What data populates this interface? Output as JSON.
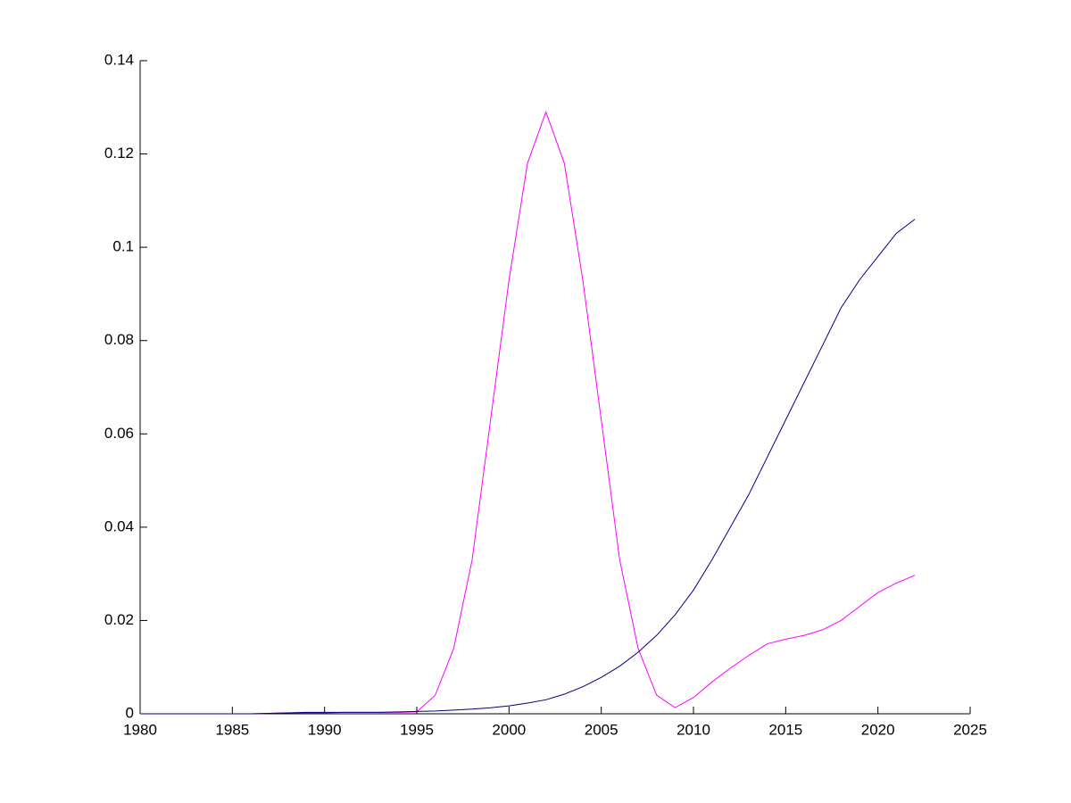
{
  "chart_data": {
    "type": "line",
    "x": [
      1980,
      1981,
      1982,
      1983,
      1984,
      1985,
      1986,
      1987,
      1988,
      1989,
      1990,
      1991,
      1992,
      1993,
      1994,
      1995,
      1996,
      1997,
      1998,
      1999,
      2000,
      2001,
      2002,
      2003,
      2004,
      2005,
      2006,
      2007,
      2008,
      2009,
      2010,
      2011,
      2012,
      2013,
      2014,
      2015,
      2016,
      2017,
      2018,
      2019,
      2020,
      2021,
      2022
    ],
    "series": [
      {
        "color": "#ff00ff",
        "values": [
          0,
          0,
          0,
          0,
          0,
          0,
          0,
          0.0001,
          0.0002,
          0.0002,
          0.0002,
          0.0003,
          0.0003,
          0.0003,
          0.0003,
          0.0004,
          0.004,
          0.014,
          0.033,
          0.063,
          0.093,
          0.118,
          0.129,
          0.118,
          0.093,
          0.063,
          0.033,
          0.014,
          0.004,
          0.0013,
          0.0035,
          0.0068,
          0.0098,
          0.0125,
          0.015,
          0.016,
          0.0168,
          0.018,
          0.02,
          0.023,
          0.026,
          0.028,
          0.0297
        ]
      },
      {
        "color": "#000080",
        "values": [
          0,
          0,
          0,
          0,
          0,
          0,
          0,
          0.0001,
          0.0002,
          0.0003,
          0.0003,
          0.0003,
          0.0003,
          0.0003,
          0.0004,
          0.0005,
          0.0006,
          0.0008,
          0.001,
          0.0013,
          0.0017,
          0.0023,
          0.003,
          0.0042,
          0.0058,
          0.0078,
          0.0102,
          0.0132,
          0.0168,
          0.0212,
          0.0265,
          0.033,
          0.04,
          0.047,
          0.055,
          0.063,
          0.071,
          0.079,
          0.087,
          0.093,
          0.098,
          0.103,
          0.106
        ]
      }
    ],
    "xlim": [
      1980,
      2025
    ],
    "xticks": [
      1980,
      1985,
      1990,
      1995,
      2000,
      2005,
      2010,
      2015,
      2020,
      2025
    ],
    "ylim": [
      0,
      0.14
    ],
    "yticks": [
      0,
      0.02,
      0.04,
      0.06,
      0.08,
      0.1,
      0.12,
      0.14
    ],
    "grid": false
  }
}
